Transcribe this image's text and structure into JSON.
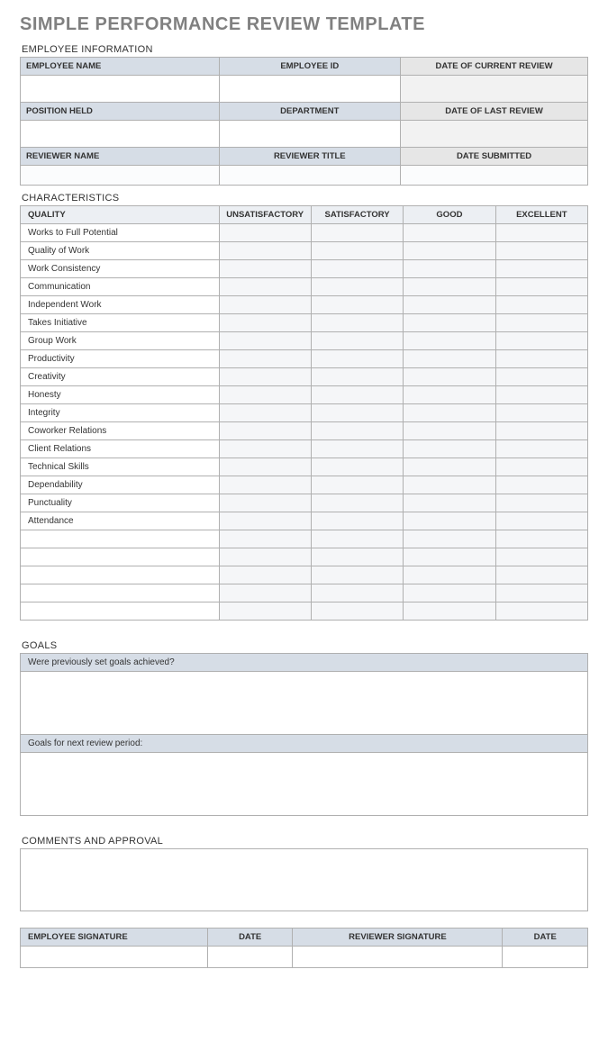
{
  "title": "SIMPLE PERFORMANCE REVIEW TEMPLATE",
  "sections": {
    "employee_info": {
      "label": "EMPLOYEE INFORMATION",
      "row1": {
        "employee_name": "EMPLOYEE NAME",
        "employee_id": "EMPLOYEE ID",
        "date_current_review": "DATE OF CURRENT REVIEW"
      },
      "row2": {
        "position_held": "POSITION HELD",
        "department": "DEPARTMENT",
        "date_last_review": "DATE OF LAST REVIEW"
      },
      "row3": {
        "reviewer_name": "REVIEWER NAME",
        "reviewer_title": "REVIEWER TITLE",
        "date_submitted": "DATE SUBMITTED"
      },
      "values": {
        "employee_name": "",
        "employee_id": "",
        "date_current_review": "",
        "position_held": "",
        "department": "",
        "date_last_review": "",
        "reviewer_name": "",
        "reviewer_title": "",
        "date_submitted": ""
      }
    },
    "characteristics": {
      "label": "CHARACTERISTICS",
      "columns": {
        "quality": "QUALITY",
        "unsatisfactory": "UNSATISFACTORY",
        "satisfactory": "SATISFACTORY",
        "good": "GOOD",
        "excellent": "EXCELLENT"
      },
      "rows": [
        "Works to Full Potential",
        "Quality of Work",
        "Work Consistency",
        "Communication",
        "Independent Work",
        "Takes Initiative",
        "Group Work",
        "Productivity",
        "Creativity",
        "Honesty",
        "Integrity",
        "Coworker Relations",
        "Client Relations",
        "Technical Skills",
        "Dependability",
        "Punctuality",
        "Attendance",
        "",
        "",
        "",
        "",
        ""
      ],
      "column_widths_pct": [
        35,
        16.25,
        16.25,
        16.25,
        16.25
      ]
    },
    "goals": {
      "label": "GOALS",
      "prompt1": "Were previously set goals achieved?",
      "body1": "",
      "prompt2": "Goals for next review period:",
      "body2": ""
    },
    "comments": {
      "label": "COMMENTS AND APPROVAL",
      "body": ""
    },
    "signature": {
      "columns": {
        "employee_signature": "EMPLOYEE SIGNATURE",
        "date1": "DATE",
        "reviewer_signature": "REVIEWER SIGNATURE",
        "date2": "DATE"
      },
      "values": {
        "employee_signature": "",
        "date1": "",
        "reviewer_signature": "",
        "date2": ""
      },
      "column_widths_pct": [
        33,
        15,
        37,
        15
      ]
    }
  },
  "colors": {
    "header_blue": "#d6dde6",
    "header_gray": "#e6e6e6",
    "rating_fill": "#f5f6f8",
    "border": "#b0b0b0",
    "title_gray": "#808080"
  }
}
